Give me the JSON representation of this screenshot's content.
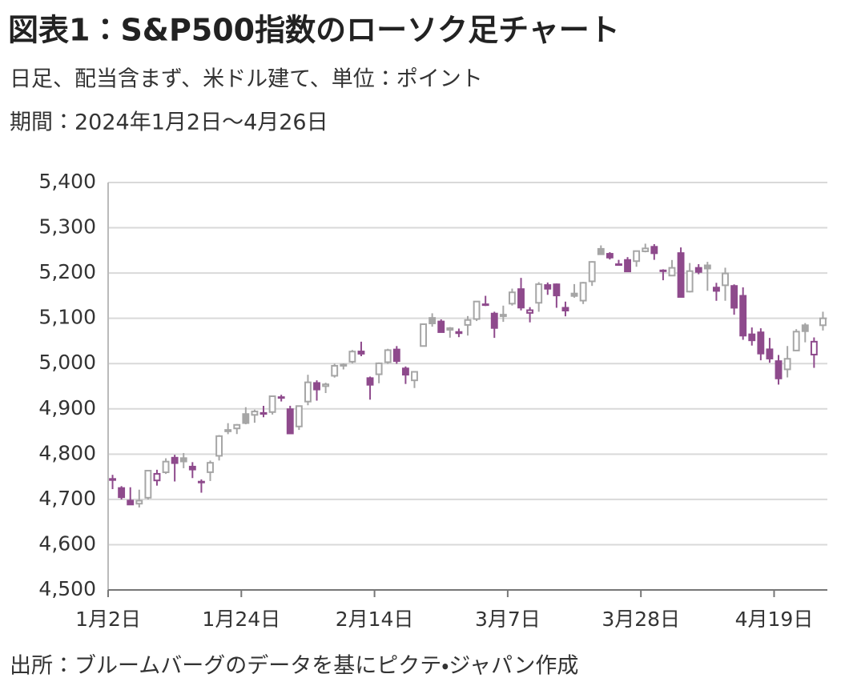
{
  "chart_data": {
    "type": "candlestick",
    "title": "図表1：S&P500指数のローソク足チャート",
    "subtitle": [
      "日足、配当含まず、米ドル建て、単位：ポイント",
      "期間：2024年1月2日～4月26日"
    ],
    "source": "出所：ブルームバーグのデータを基にピクテ・ジャパン作成",
    "categories": [
      "1月2日",
      null,
      null,
      null,
      null,
      null,
      null,
      null,
      null,
      null,
      null,
      null,
      null,
      null,
      null,
      "1月24日",
      null,
      null,
      null,
      null,
      null,
      null,
      null,
      null,
      null,
      null,
      null,
      null,
      null,
      null,
      "2月14日",
      null,
      null,
      null,
      null,
      null,
      null,
      null,
      null,
      null,
      null,
      null,
      null,
      null,
      null,
      "3月7日",
      null,
      null,
      null,
      null,
      null,
      null,
      null,
      null,
      null,
      null,
      null,
      null,
      null,
      null,
      "3月28日",
      null,
      null,
      null,
      null,
      null,
      null,
      null,
      null,
      null,
      null,
      null,
      null,
      null,
      null,
      "4月19日",
      null,
      null,
      null,
      null,
      null
    ],
    "open": [
      4745.2,
      4725.1,
      4697.4,
      4690.6,
      4703.7,
      4741.9,
      4759.9,
      4792.1,
      4791.2,
      4772.4,
      4739.1,
      4760.1,
      4796.3,
      4853.4,
      4856.8,
      4888.6,
      4886.7,
      4888.9,
      4892.9,
      4925.9,
      4899.2,
      4861.1,
      4916.1,
      4957.2,
      4950.2,
      4973.1,
      4995.2,
      5004.2,
      5026.8,
      4967.9,
      4976.4,
      5003.1,
      5031.1,
      4989.3,
      4963.0,
      5038.8,
      5100.9,
      5093.0,
      5074.6,
      5067.2,
      5085.4,
      5098.5,
      5131.0,
      5110.5,
      5108.0,
      5132.4,
      5164.5,
      5112.0,
      5134.3,
      5173.5,
      5175.1,
      5123.3,
      5154.8,
      5139.1,
      5181.7,
      5253.4,
      5242.5,
      5219.5,
      5228.9,
      5226.3,
      5248.0,
      5258.0,
      5204.3,
      5194.4,
      5244.1,
      5159.0,
      5211.4,
      5217.0,
      5167.9,
      5173.0,
      5171.5,
      5149.7,
      5064.6,
      5069.0,
      5031.5,
      5005.4,
      4987.3,
      5028.9,
      5084.7,
      5019.9,
      5084.7
    ],
    "high": [
      4754.3,
      4729.3,
      4726.8,
      4721.5,
      4764.5,
      4765.5,
      4790.8,
      4798.5,
      4802.4,
      4782.3,
      4744.2,
      4785.8,
      4842.1,
      4868.4,
      4866.5,
      4903.7,
      4898.2,
      4906.7,
      4929.3,
      4931.1,
      4906.8,
      4907.0,
      4975.3,
      4963.0,
      4957.8,
      4999.9,
      5000.4,
      5030.1,
      5048.4,
      4971.3,
      5002.5,
      5032.7,
      5038.7,
      4993.7,
      4983.2,
      5087.0,
      5111.1,
      5097.7,
      5080.7,
      5077.4,
      5105.0,
      5137.7,
      5149.7,
      5114.6,
      5128.0,
      5165.6,
      5189.3,
      5124.7,
      5179.9,
      5179.1,
      5176.9,
      5136.9,
      5175.6,
      5180.3,
      5226.2,
      5261.1,
      5246.1,
      5229.1,
      5235.2,
      5249.1,
      5264.9,
      5263.9,
      5208.3,
      5228.8,
      5256.6,
      5222.2,
      5219.6,
      5224.8,
      5178.4,
      5211.8,
      5175.0,
      5168.4,
      5079.8,
      5078.0,
      5056.7,
      5019.0,
      5038.8,
      5076.1,
      5089.5,
      5057.8,
      5114.6
    ],
    "low": [
      4722.7,
      4699.7,
      4687.5,
      4682.1,
      4699.8,
      4730.4,
      4756.2,
      4739.6,
      4768.9,
      4747.1,
      4714.8,
      4740.6,
      4785.9,
      4844.1,
      4844.4,
      4865.9,
      4869.3,
      4881.5,
      4887.4,
      4916.3,
      4845.2,
      4853.5,
      4908.0,
      4918.1,
      4934.9,
      4969.1,
      4987.1,
      5000.3,
      5016.3,
      4920.3,
      4956.5,
      4999.4,
      4999.5,
      4955.0,
      4946.0,
      5038.8,
      5081.5,
      5068.9,
      5057.3,
      5058.4,
      5061.9,
      5094.0,
      5127.2,
      5056.8,
      5092.2,
      5128.2,
      5117.5,
      5091.1,
      5114.5,
      5151.9,
      5123.3,
      5104.4,
      5145.5,
      5131.6,
      5171.6,
      5240.7,
      5229.9,
      5216.1,
      5203.4,
      5213.9,
      5245.8,
      5229.2,
      5184.1,
      5194.4,
      5146.1,
      5157.2,
      5197.4,
      5160.8,
      5138.7,
      5138.8,
      5107.9,
      5052.5,
      5039.8,
      5007.3,
      5001.9,
      4953.6,
      4969.4,
      5028.0,
      5047.0,
      4990.6,
      5073.1
    ],
    "close": [
      4742.8,
      4704.8,
      4688.7,
      4697.2,
      4763.5,
      4756.5,
      4783.5,
      4780.2,
      4783.8,
      4766.0,
      4739.2,
      4780.9,
      4839.8,
      4850.4,
      4864.6,
      4868.6,
      4894.2,
      4891.0,
      4927.9,
      4925.0,
      4845.7,
      4906.2,
      4958.6,
      4942.8,
      4954.2,
      4995.1,
      4997.9,
      5026.6,
      5021.8,
      4953.2,
      5000.6,
      5029.7,
      5005.6,
      4975.5,
      4981.8,
      5087.0,
      5088.8,
      5069.5,
      5078.2,
      5069.8,
      5096.3,
      5137.1,
      5131.0,
      5078.7,
      5104.8,
      5157.4,
      5123.7,
      5117.9,
      5175.3,
      5165.3,
      5150.5,
      5117.1,
      5149.4,
      5178.5,
      5224.6,
      5241.5,
      5234.2,
      5218.2,
      5203.6,
      5248.5,
      5254.4,
      5243.8,
      5205.8,
      5211.5,
      5147.2,
      5204.3,
      5202.4,
      5209.9,
      5160.6,
      5199.1,
      5123.4,
      5061.8,
      5051.4,
      5022.2,
      5011.1,
      4967.2,
      5010.6,
      5070.6,
      5071.6,
      5048.4,
      5100.0
    ],
    "up_color": "#a6a6a6",
    "down_color": "#8e4a8c",
    "ylim": [
      4500,
      5400
    ],
    "yticks": [
      {
        "value": 4500,
        "label": "4,500"
      },
      {
        "value": 4600,
        "label": "4,600"
      },
      {
        "value": 4700,
        "label": "4,700"
      },
      {
        "value": 4800,
        "label": "4,800"
      },
      {
        "value": 4900,
        "label": "4,900"
      },
      {
        "value": 5000,
        "label": "5,000"
      },
      {
        "value": 5100,
        "label": "5,100"
      },
      {
        "value": 5200,
        "label": "5,200"
      },
      {
        "value": 5300,
        "label": "5,300"
      },
      {
        "value": 5400,
        "label": "5,400"
      }
    ],
    "grid": true
  }
}
